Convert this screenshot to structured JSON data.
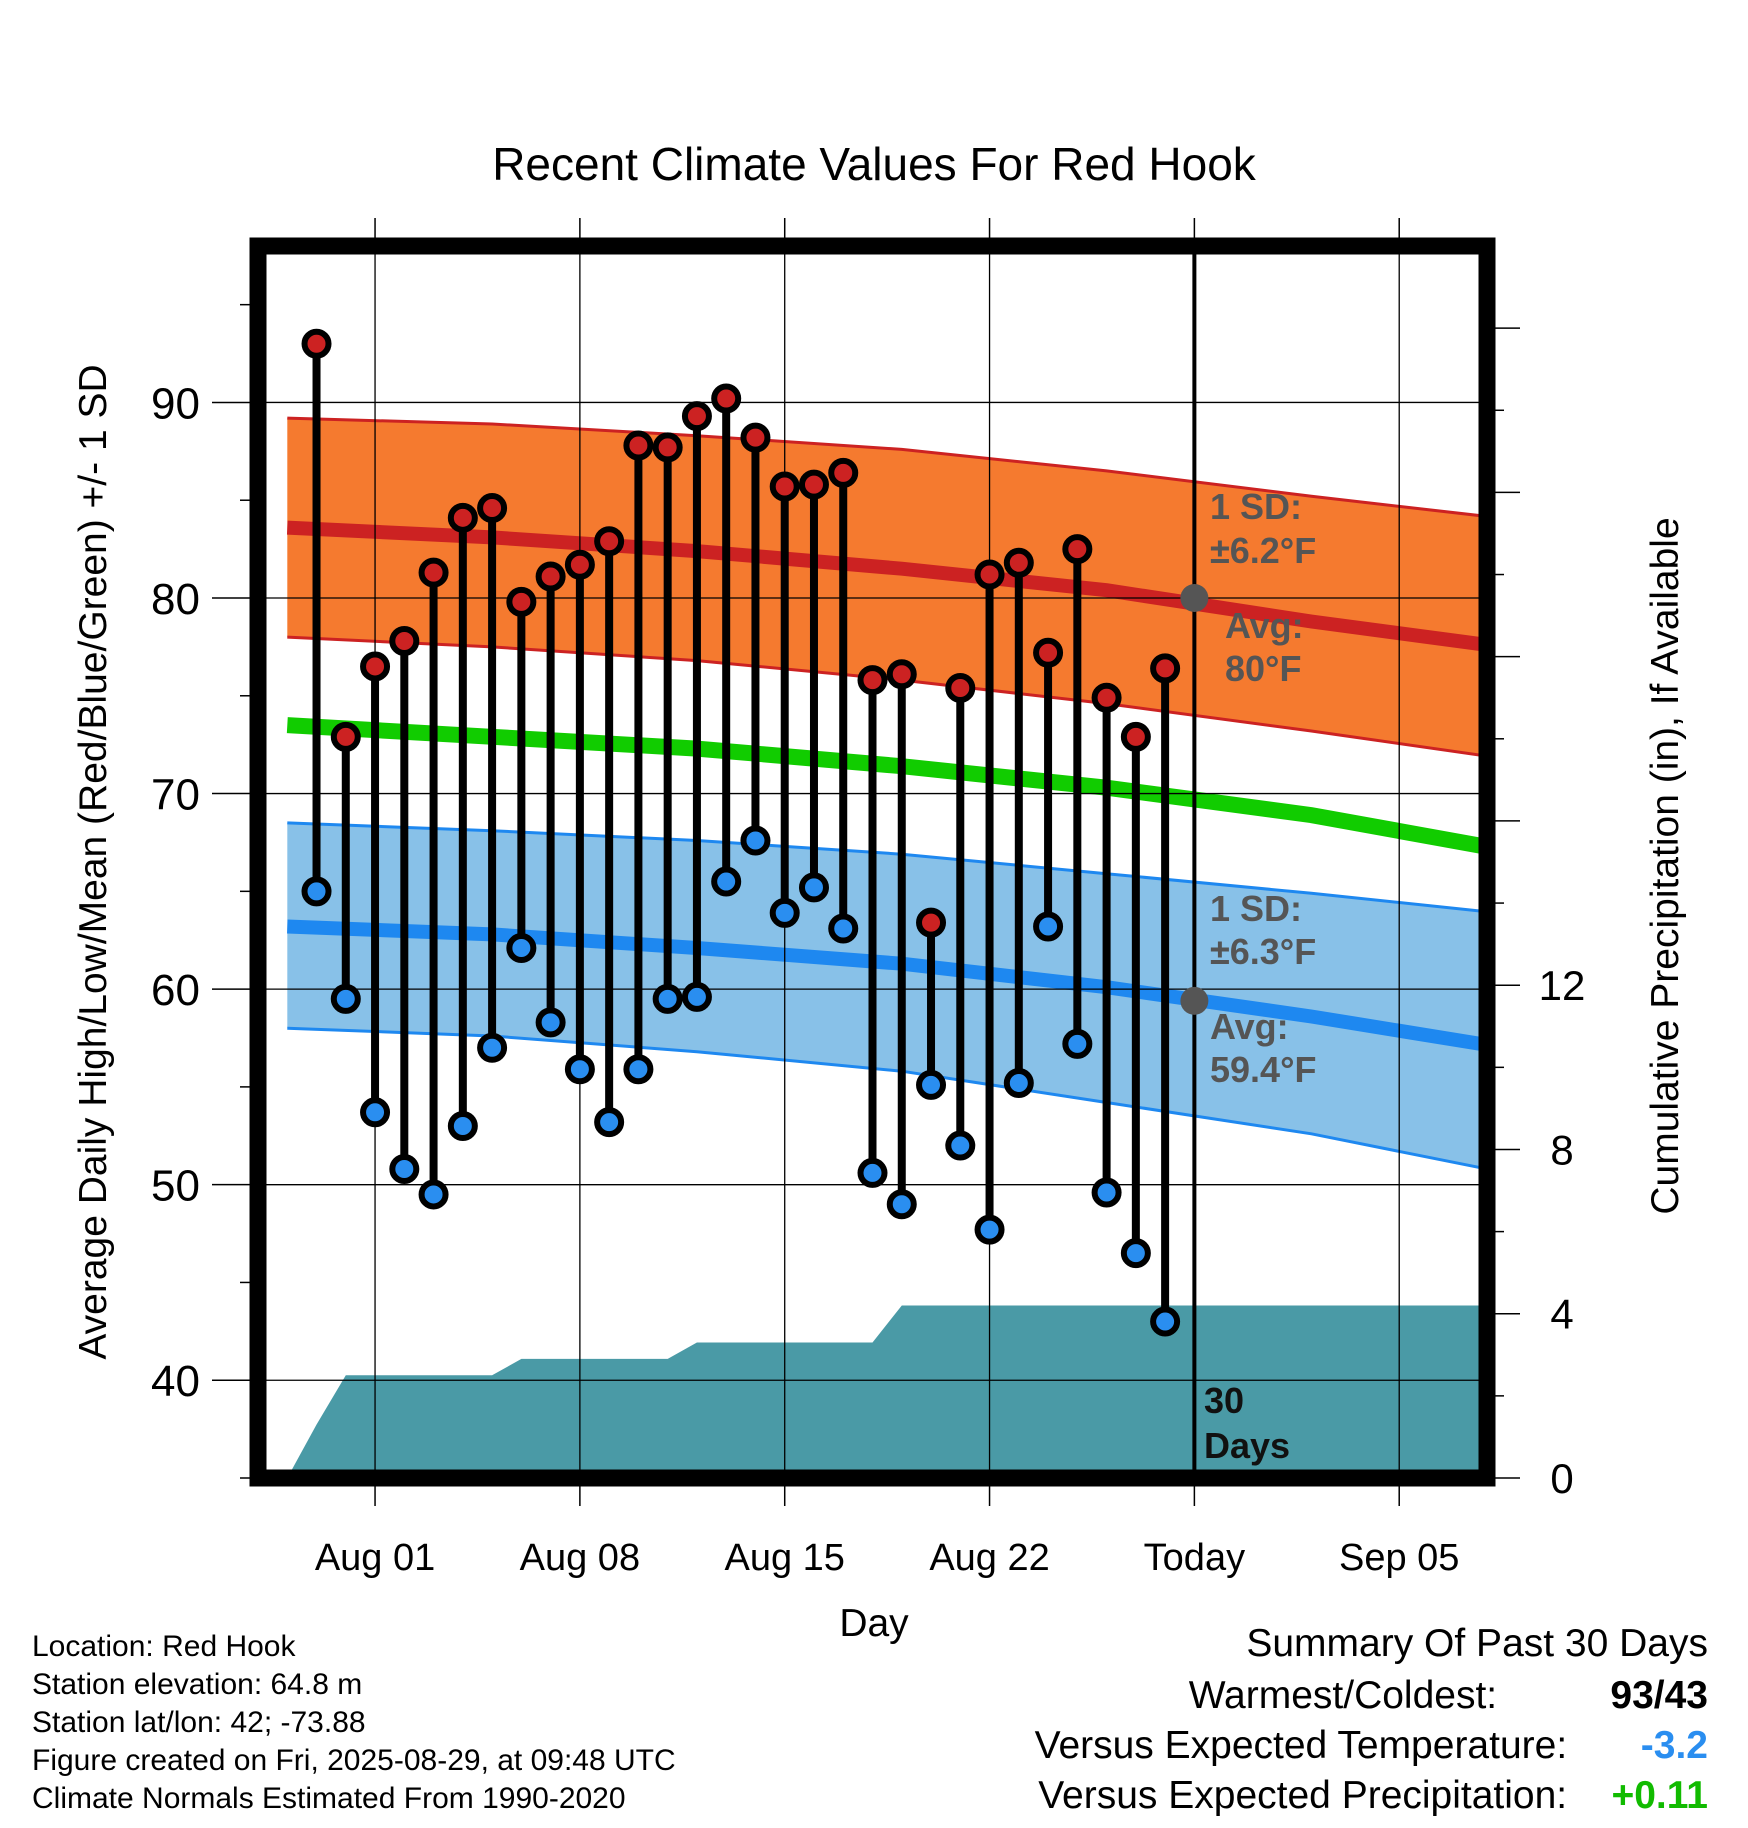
{
  "chart_data": {
    "type": "line",
    "title": "Recent Climate Values For Red Hook",
    "xlabel": "Day",
    "ylabel": "Average Daily High/Low/Mean (Red/Blue/Green) +/- 1 SD",
    "y2label": "Cumulative Precipitation (in), If Available",
    "xlim": [
      "2025-07-28",
      "2025-09-08"
    ],
    "ylim": [
      35,
      98
    ],
    "y2lim": [
      0,
      30
    ],
    "x_tick_labels": [
      "Aug 01",
      "Aug 08",
      "Aug 15",
      "Aug 22",
      "Today",
      "Sep 05"
    ],
    "x_tick_dates": [
      "2025-08-01",
      "2025-08-08",
      "2025-08-15",
      "2025-08-22",
      "2025-08-29",
      "2025-09-05"
    ],
    "y_ticks": [
      40,
      50,
      60,
      70,
      80,
      90
    ],
    "y2_ticks": [
      0,
      4,
      8,
      12
    ],
    "grid": true,
    "today": "2025-08-29",
    "normals_dates": [
      "2025-07-29",
      "2025-08-05",
      "2025-08-12",
      "2025-08-19",
      "2025-08-26",
      "2025-09-02",
      "2025-09-09"
    ],
    "normal_high": [
      83.6,
      83.1,
      82.4,
      81.5,
      80.4,
      78.8,
      77.4
    ],
    "normal_high_upper": [
      89.2,
      88.9,
      88.3,
      87.6,
      86.5,
      85.2,
      84.0
    ],
    "normal_high_lower": [
      78.0,
      77.5,
      76.8,
      75.8,
      74.6,
      73.2,
      71.7
    ],
    "normal_mean": [
      73.5,
      72.9,
      72.3,
      71.4,
      70.3,
      68.9,
      67.0
    ],
    "normal_low": [
      63.2,
      62.8,
      62.1,
      61.3,
      60.1,
      58.6,
      56.9
    ],
    "normal_low_upper": [
      68.5,
      68.1,
      67.6,
      66.9,
      65.9,
      64.9,
      63.8
    ],
    "normal_low_lower": [
      58.0,
      57.6,
      56.8,
      55.8,
      54.2,
      52.6,
      50.5
    ],
    "series": [
      {
        "name": "High",
        "color": "#cc2222",
        "x": [
          "2025-07-30",
          "2025-07-31",
          "2025-08-01",
          "2025-08-02",
          "2025-08-03",
          "2025-08-04",
          "2025-08-05",
          "2025-08-06",
          "2025-08-07",
          "2025-08-08",
          "2025-08-09",
          "2025-08-10",
          "2025-08-11",
          "2025-08-12",
          "2025-08-13",
          "2025-08-14",
          "2025-08-15",
          "2025-08-16",
          "2025-08-17",
          "2025-08-18",
          "2025-08-19",
          "2025-08-20",
          "2025-08-21",
          "2025-08-22",
          "2025-08-23",
          "2025-08-24",
          "2025-08-25",
          "2025-08-26",
          "2025-08-27",
          "2025-08-28"
        ],
        "values": [
          93.0,
          72.9,
          76.5,
          77.8,
          81.3,
          84.1,
          84.6,
          79.8,
          81.1,
          81.7,
          82.9,
          87.8,
          87.7,
          89.3,
          90.2,
          88.2,
          85.7,
          85.8,
          86.4,
          75.8,
          76.1,
          63.4,
          75.4,
          81.2,
          81.8,
          77.2,
          82.5,
          74.9,
          72.9,
          76.4
        ]
      },
      {
        "name": "Low",
        "color": "#2a8ef0",
        "x": [
          "2025-07-30",
          "2025-07-31",
          "2025-08-01",
          "2025-08-02",
          "2025-08-03",
          "2025-08-04",
          "2025-08-05",
          "2025-08-06",
          "2025-08-07",
          "2025-08-08",
          "2025-08-09",
          "2025-08-10",
          "2025-08-11",
          "2025-08-12",
          "2025-08-13",
          "2025-08-14",
          "2025-08-15",
          "2025-08-16",
          "2025-08-17",
          "2025-08-18",
          "2025-08-19",
          "2025-08-20",
          "2025-08-21",
          "2025-08-22",
          "2025-08-23",
          "2025-08-24",
          "2025-08-25",
          "2025-08-26",
          "2025-08-27",
          "2025-08-28"
        ],
        "values": [
          65.0,
          59.5,
          53.7,
          50.8,
          49.5,
          53.0,
          57.0,
          62.1,
          58.3,
          55.9,
          53.2,
          55.9,
          59.5,
          59.6,
          65.5,
          67.6,
          63.9,
          65.2,
          63.1,
          50.6,
          49.0,
          55.1,
          52.0,
          47.7,
          55.2,
          63.2,
          57.2,
          49.6,
          46.5,
          43.0
        ]
      },
      {
        "name": "Cumulative Precipitation",
        "color": "#4a9aa6",
        "x": [
          "2025-07-29",
          "2025-07-30",
          "2025-07-31",
          "2025-08-05",
          "2025-08-06",
          "2025-08-11",
          "2025-08-12",
          "2025-08-18",
          "2025-08-19",
          "2025-09-08"
        ],
        "values": [
          0,
          1.3,
          2.5,
          2.5,
          2.9,
          2.9,
          3.3,
          3.3,
          4.2,
          4.2
        ]
      }
    ],
    "annotations": {
      "high_sd": "1 SD:",
      "high_sd_value": "±6.2°F",
      "high_avg": "Avg:",
      "high_avg_value": "80°F",
      "low_sd": "1 SD:",
      "low_sd_value": "±6.3°F",
      "low_avg": "Avg:",
      "low_avg_value": "59.4°F",
      "days_line1": "30",
      "days_line2": "Days"
    },
    "colors": {
      "high_band": "#f57a2f",
      "high_line": "#cc2222",
      "mean_line": "#11cc00",
      "low_band": "#88c1e8",
      "low_line": "#1e88f0",
      "precip": "#4a9aa6",
      "annotation": "#555555"
    }
  },
  "info": {
    "location": "Location: Red Hook",
    "elevation": "Station elevation: 64.8 m",
    "latlon": "Station lat/lon: 42; -73.88",
    "created": "Figure created on Fri, 2025-08-29, at 09:48 UTC",
    "normals": "Climate Normals Estimated From 1990-2020"
  },
  "summary": {
    "title": "Summary Of Past 30 Days",
    "warmest_label": "Warmest/Coldest:",
    "warmest_value": "93",
    "coldest_value": "43",
    "temp_label": "Versus Expected Temperature:",
    "temp_value": "-3.2",
    "temp_color": "#2a8ef0",
    "precip_label": "Versus Expected Precipitation:",
    "precip_value": "+0.11",
    "precip_color": "#11bb00"
  }
}
